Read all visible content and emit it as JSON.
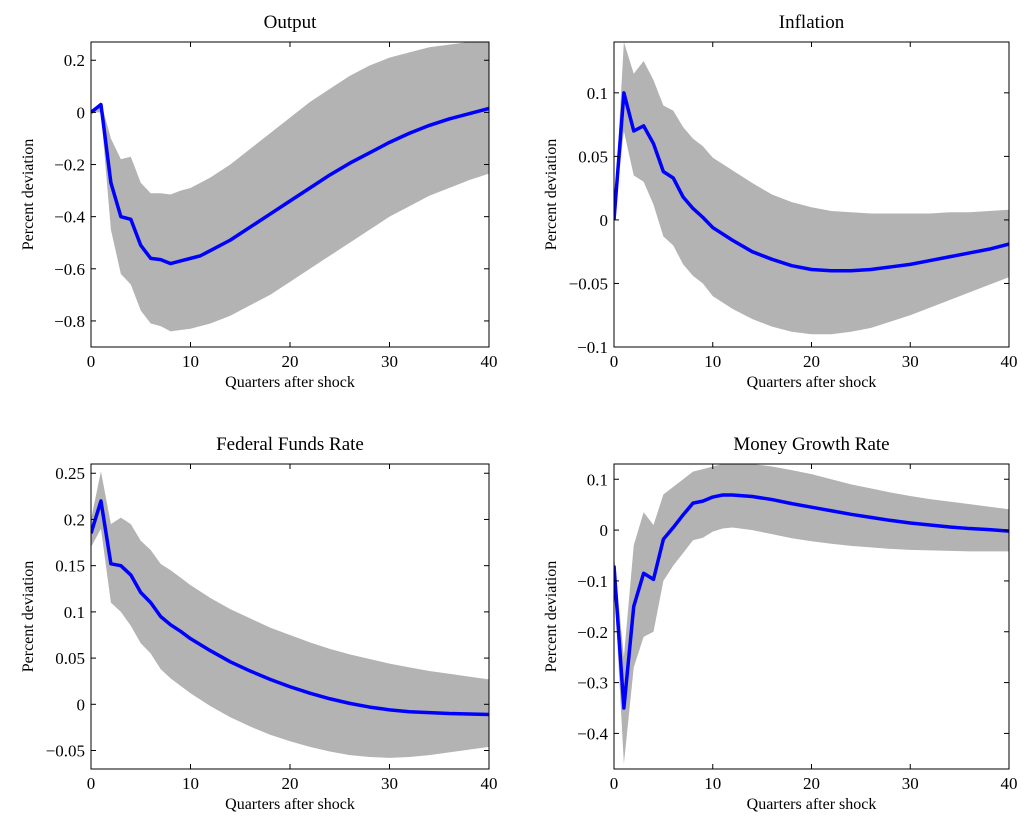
{
  "chart_data": [
    {
      "type": "line",
      "title": "Output",
      "xlabel": "Quarters after shock",
      "ylabel": "Percent deviation",
      "xlim": [
        0,
        40
      ],
      "ylim": [
        -0.9,
        0.27
      ],
      "xticks": [
        0,
        10,
        20,
        30,
        40
      ],
      "xtick_labels": [
        "0",
        "10",
        "20",
        "30",
        "40"
      ],
      "yticks": [
        -0.8,
        -0.6,
        -0.4,
        -0.2,
        0,
        0.2
      ],
      "ytick_labels": [
        "−0.8",
        "−0.6",
        "−0.4",
        "−0.2",
        "0",
        "0.2"
      ],
      "line_color": "#0000ff",
      "band_color": "#b3b3b3",
      "median": {
        "x": [
          0,
          1,
          2,
          3,
          4,
          5,
          6,
          7,
          8,
          9,
          10,
          11,
          12,
          14,
          16,
          18,
          20,
          22,
          24,
          26,
          28,
          30,
          32,
          34,
          36,
          38,
          40
        ],
        "y": [
          0.0,
          0.03,
          -0.27,
          -0.4,
          -0.41,
          -0.51,
          -0.56,
          -0.565,
          -0.58,
          -0.57,
          -0.56,
          -0.55,
          -0.53,
          -0.49,
          -0.44,
          -0.39,
          -0.34,
          -0.29,
          -0.24,
          -0.195,
          -0.155,
          -0.115,
          -0.08,
          -0.05,
          -0.025,
          -0.005,
          0.015
        ]
      },
      "band_upper": {
        "x": [
          0,
          1,
          2,
          3,
          4,
          5,
          6,
          7,
          8,
          9,
          10,
          11,
          12,
          14,
          16,
          18,
          20,
          22,
          24,
          26,
          28,
          30,
          32,
          34,
          36,
          38,
          40
        ],
        "y": [
          0.0,
          0.04,
          -0.1,
          -0.18,
          -0.17,
          -0.27,
          -0.31,
          -0.31,
          -0.315,
          -0.3,
          -0.29,
          -0.27,
          -0.25,
          -0.2,
          -0.14,
          -0.08,
          -0.02,
          0.04,
          0.09,
          0.14,
          0.18,
          0.21,
          0.23,
          0.25,
          0.26,
          0.27,
          0.27
        ]
      },
      "band_lower": {
        "x": [
          0,
          1,
          2,
          3,
          4,
          5,
          6,
          7,
          8,
          9,
          10,
          11,
          12,
          14,
          16,
          18,
          20,
          22,
          24,
          26,
          28,
          30,
          32,
          34,
          36,
          38,
          40
        ],
        "y": [
          0.0,
          0.0,
          -0.45,
          -0.62,
          -0.66,
          -0.76,
          -0.81,
          -0.82,
          -0.84,
          -0.835,
          -0.83,
          -0.82,
          -0.81,
          -0.78,
          -0.74,
          -0.7,
          -0.65,
          -0.6,
          -0.55,
          -0.5,
          -0.45,
          -0.4,
          -0.36,
          -0.32,
          -0.29,
          -0.26,
          -0.235
        ]
      }
    },
    {
      "type": "line",
      "title": "Inflation",
      "xlabel": "Quarters after shock",
      "ylabel": "Percent deviation",
      "xlim": [
        0,
        40
      ],
      "ylim": [
        -0.1,
        0.14
      ],
      "xticks": [
        0,
        10,
        20,
        30,
        40
      ],
      "xtick_labels": [
        "0",
        "10",
        "20",
        "30",
        "40"
      ],
      "yticks": [
        -0.1,
        -0.05,
        0,
        0.05,
        0.1
      ],
      "ytick_labels": [
        "−0.1",
        "−0.05",
        "0",
        "0.05",
        "0.1"
      ],
      "line_color": "#0000ff",
      "band_color": "#b3b3b3",
      "median": {
        "x": [
          0,
          1,
          2,
          3,
          4,
          5,
          6,
          7,
          8,
          9,
          10,
          12,
          14,
          16,
          18,
          20,
          22,
          24,
          26,
          28,
          30,
          32,
          34,
          36,
          38,
          40
        ],
        "y": [
          0.0,
          0.1,
          0.07,
          0.074,
          0.06,
          0.038,
          0.033,
          0.018,
          0.009,
          0.002,
          -0.006,
          -0.016,
          -0.025,
          -0.031,
          -0.036,
          -0.039,
          -0.04,
          -0.04,
          -0.039,
          -0.037,
          -0.035,
          -0.032,
          -0.029,
          -0.026,
          -0.023,
          -0.019
        ]
      },
      "band_upper": {
        "x": [
          0,
          1,
          2,
          3,
          4,
          5,
          6,
          7,
          8,
          9,
          10,
          12,
          14,
          16,
          18,
          20,
          22,
          24,
          26,
          28,
          30,
          32,
          34,
          36,
          38,
          40
        ],
        "y": [
          0.0,
          0.14,
          0.115,
          0.125,
          0.11,
          0.09,
          0.086,
          0.073,
          0.064,
          0.058,
          0.049,
          0.039,
          0.029,
          0.02,
          0.014,
          0.01,
          0.007,
          0.006,
          0.005,
          0.005,
          0.005,
          0.005,
          0.006,
          0.006,
          0.007,
          0.008
        ]
      },
      "band_lower": {
        "x": [
          0,
          1,
          2,
          3,
          4,
          5,
          6,
          7,
          8,
          9,
          10,
          12,
          14,
          16,
          18,
          20,
          22,
          24,
          26,
          28,
          30,
          32,
          34,
          36,
          38,
          40
        ],
        "y": [
          0.0,
          0.07,
          0.035,
          0.03,
          0.012,
          -0.013,
          -0.02,
          -0.035,
          -0.044,
          -0.05,
          -0.06,
          -0.07,
          -0.078,
          -0.084,
          -0.088,
          -0.09,
          -0.09,
          -0.088,
          -0.085,
          -0.08,
          -0.075,
          -0.069,
          -0.063,
          -0.057,
          -0.051,
          -0.045
        ]
      }
    },
    {
      "type": "line",
      "title": "Federal Funds Rate",
      "xlabel": "Quarters after shock",
      "ylabel": "Percent deviation",
      "xlim": [
        0,
        40
      ],
      "ylim": [
        -0.07,
        0.26
      ],
      "xticks": [
        0,
        10,
        20,
        30,
        40
      ],
      "xtick_labels": [
        "0",
        "10",
        "20",
        "30",
        "40"
      ],
      "yticks": [
        -0.05,
        0,
        0.05,
        0.1,
        0.15,
        0.2,
        0.25
      ],
      "ytick_labels": [
        "−0.05",
        "0",
        "0.05",
        "0.1",
        "0.15",
        "0.2",
        "0.25"
      ],
      "line_color": "#0000ff",
      "band_color": "#b3b3b3",
      "median": {
        "x": [
          0,
          1,
          2,
          3,
          4,
          5,
          6,
          7,
          8,
          9,
          10,
          12,
          14,
          16,
          18,
          20,
          22,
          24,
          26,
          28,
          30,
          32,
          34,
          36,
          38,
          40
        ],
        "y": [
          0.185,
          0.22,
          0.152,
          0.15,
          0.14,
          0.121,
          0.11,
          0.095,
          0.086,
          0.079,
          0.071,
          0.058,
          0.046,
          0.036,
          0.027,
          0.019,
          0.012,
          0.006,
          0.001,
          -0.003,
          -0.006,
          -0.008,
          -0.009,
          -0.01,
          -0.0105,
          -0.011
        ]
      },
      "band_upper": {
        "x": [
          0,
          1,
          2,
          3,
          4,
          5,
          6,
          7,
          8,
          9,
          10,
          12,
          14,
          16,
          18,
          20,
          22,
          24,
          26,
          28,
          30,
          32,
          34,
          36,
          38,
          40
        ],
        "y": [
          0.2,
          0.252,
          0.195,
          0.202,
          0.195,
          0.177,
          0.167,
          0.152,
          0.145,
          0.137,
          0.129,
          0.115,
          0.103,
          0.093,
          0.083,
          0.075,
          0.067,
          0.06,
          0.054,
          0.049,
          0.044,
          0.04,
          0.036,
          0.033,
          0.03,
          0.027
        ]
      },
      "band_lower": {
        "x": [
          0,
          1,
          2,
          3,
          4,
          5,
          6,
          7,
          8,
          9,
          10,
          12,
          14,
          16,
          18,
          20,
          22,
          24,
          26,
          28,
          30,
          32,
          34,
          36,
          38,
          40
        ],
        "y": [
          0.17,
          0.19,
          0.11,
          0.1,
          0.085,
          0.066,
          0.055,
          0.038,
          0.028,
          0.02,
          0.012,
          -0.002,
          -0.014,
          -0.024,
          -0.033,
          -0.04,
          -0.046,
          -0.051,
          -0.055,
          -0.057,
          -0.058,
          -0.057,
          -0.055,
          -0.052,
          -0.049,
          -0.046
        ]
      }
    },
    {
      "type": "line",
      "title": "Money Growth Rate",
      "xlabel": "Quarters after shock",
      "ylabel": "Percent deviation",
      "xlim": [
        0,
        40
      ],
      "ylim": [
        -0.47,
        0.13
      ],
      "xticks": [
        0,
        10,
        20,
        30,
        40
      ],
      "xtick_labels": [
        "0",
        "10",
        "20",
        "30",
        "40"
      ],
      "yticks": [
        -0.4,
        -0.3,
        -0.2,
        -0.1,
        0,
        0.1
      ],
      "ytick_labels": [
        "−0.4",
        "−0.3",
        "−0.2",
        "−0.1",
        "0",
        "0.1"
      ],
      "line_color": "#0000ff",
      "band_color": "#b3b3b3",
      "median": {
        "x": [
          0,
          1,
          2,
          3,
          4,
          5,
          6,
          7,
          8,
          9,
          10,
          11,
          12,
          14,
          16,
          18,
          20,
          22,
          24,
          26,
          28,
          30,
          32,
          34,
          36,
          38,
          40
        ],
        "y": [
          -0.07,
          -0.35,
          -0.15,
          -0.085,
          -0.097,
          -0.018,
          0.005,
          0.03,
          0.053,
          0.057,
          0.065,
          0.069,
          0.069,
          0.066,
          0.06,
          0.052,
          0.045,
          0.038,
          0.031,
          0.025,
          0.019,
          0.014,
          0.01,
          0.006,
          0.003,
          0.001,
          -0.002
        ]
      },
      "band_upper": {
        "x": [
          0,
          1,
          2,
          3,
          4,
          5,
          6,
          7,
          8,
          9,
          10,
          11,
          12,
          14,
          16,
          18,
          20,
          22,
          24,
          26,
          28,
          30,
          32,
          34,
          36,
          38,
          40
        ],
        "y": [
          -0.05,
          -0.25,
          -0.03,
          0.035,
          0.01,
          0.07,
          0.085,
          0.1,
          0.115,
          0.12,
          0.125,
          0.13,
          0.13,
          0.13,
          0.125,
          0.118,
          0.11,
          0.1,
          0.09,
          0.082,
          0.074,
          0.067,
          0.061,
          0.056,
          0.051,
          0.046,
          0.041
        ]
      },
      "band_lower": {
        "x": [
          0,
          1,
          2,
          3,
          4,
          5,
          6,
          7,
          8,
          9,
          10,
          11,
          12,
          14,
          16,
          18,
          20,
          22,
          24,
          26,
          28,
          30,
          32,
          34,
          36,
          38,
          40
        ],
        "y": [
          -0.1,
          -0.46,
          -0.27,
          -0.21,
          -0.2,
          -0.1,
          -0.07,
          -0.045,
          -0.02,
          -0.015,
          -0.003,
          0.003,
          0.005,
          0.0,
          -0.008,
          -0.016,
          -0.022,
          -0.027,
          -0.031,
          -0.034,
          -0.037,
          -0.039,
          -0.04,
          -0.041,
          -0.042,
          -0.042,
          -0.042
        ]
      }
    }
  ]
}
